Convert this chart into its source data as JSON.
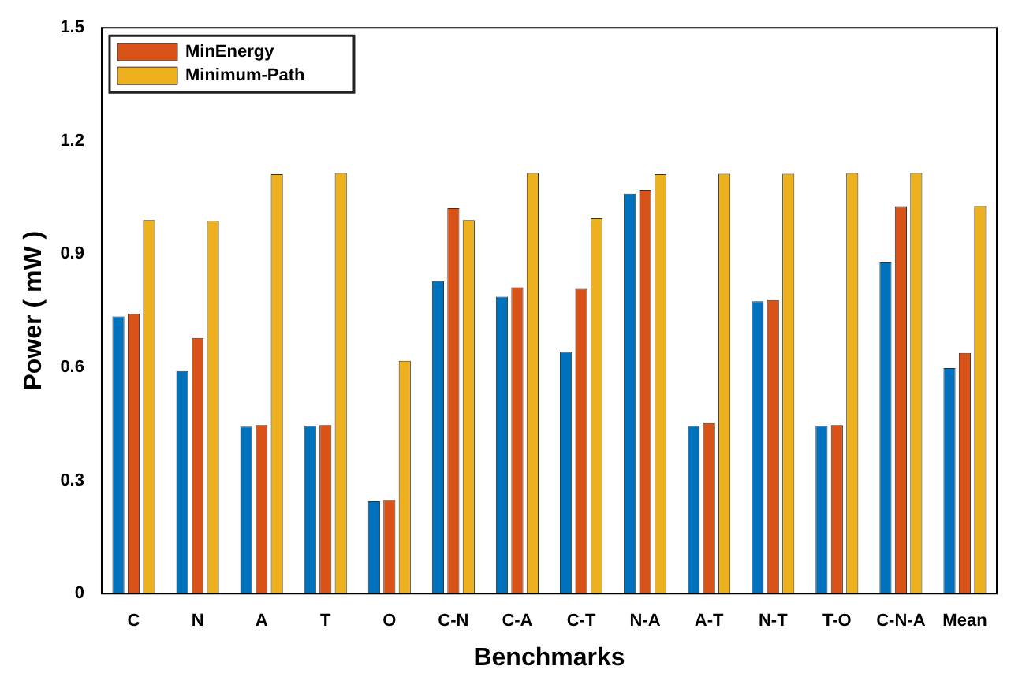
{
  "chart_data": {
    "type": "bar",
    "xlabel": "Benchmarks",
    "ylabel": "Power ( mW )",
    "categories": [
      "C",
      "N",
      "A",
      "T",
      "O",
      "C-N",
      "C-A",
      "C-T",
      "N-A",
      "A-T",
      "N-T",
      "T-O",
      "C-N-A",
      "Mean"
    ],
    "series": [
      {
        "color": "#0072bd",
        "values": [
          0.735,
          0.59,
          0.443,
          0.445,
          0.245,
          0.828,
          0.787,
          0.641,
          1.06,
          0.445,
          0.775,
          0.445,
          0.878,
          0.598
        ]
      },
      {
        "name": "MinEnergy",
        "color": "#d95319",
        "values": [
          0.742,
          0.678,
          0.447,
          0.447,
          0.248,
          1.022,
          0.812,
          0.808,
          1.07,
          0.452,
          0.778,
          0.447,
          1.025,
          0.638
        ]
      },
      {
        "name": "Minimum-Path",
        "color": "#edb120",
        "values": [
          0.99,
          0.988,
          1.112,
          1.115,
          0.617,
          0.99,
          1.115,
          0.995,
          1.112,
          1.113,
          1.113,
          1.115,
          1.115,
          1.027
        ]
      }
    ],
    "ylim": [
      0,
      1.5
    ],
    "yticks": [
      0,
      0.3,
      0.6,
      0.9,
      1.2,
      1.5
    ],
    "grid": false,
    "legend": "top left"
  }
}
